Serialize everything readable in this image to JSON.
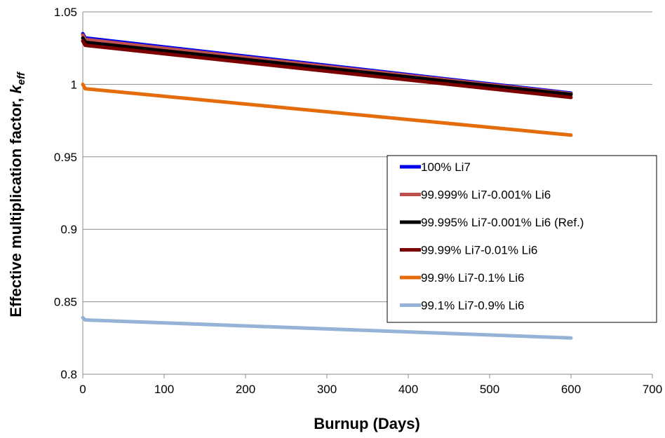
{
  "chart_data": {
    "type": "line",
    "xlabel": "Burnup (Days)",
    "ylabel": "Effective multiplication factor, ",
    "ylabel_symbol": "k",
    "ylabel_subscript": "eff",
    "xlim": [
      0,
      700
    ],
    "ylim": [
      0.8,
      1.05
    ],
    "xticks": [
      0,
      100,
      200,
      300,
      400,
      500,
      600,
      700
    ],
    "yticks": [
      0.8,
      0.85,
      0.9,
      0.95,
      1.0,
      1.05
    ],
    "xtick_labels": [
      "0",
      "100",
      "200",
      "300",
      "400",
      "500",
      "600",
      "700"
    ],
    "ytick_labels": [
      "0.8",
      "0.85",
      "0.9",
      "0.95",
      "1",
      "1.05"
    ],
    "grid": "horizontal",
    "legend_position": "center-right",
    "series": [
      {
        "name": "100% Li7",
        "color": "#0000ee",
        "x": [
          0,
          3,
          600
        ],
        "y": [
          1.035,
          1.032,
          0.994
        ]
      },
      {
        "name": "99.999% Li7-0.001% Li6",
        "color": "#c0504d",
        "x": [
          0,
          3,
          600
        ],
        "y": [
          1.034,
          1.031,
          0.9935
        ]
      },
      {
        "name": "99.995% Li7-0.001% Li6 (Ref.)",
        "color": "#000000",
        "x": [
          0,
          3,
          600
        ],
        "y": [
          1.032,
          1.029,
          0.993
        ]
      },
      {
        "name": "99.99% Li7-0.01% Li6",
        "color": "#7b0000",
        "x": [
          0,
          3,
          600
        ],
        "y": [
          1.03,
          1.027,
          0.991
        ]
      },
      {
        "name": "99.9% Li7-0.1% Li6",
        "color": "#e46c0a",
        "x": [
          0,
          3,
          600
        ],
        "y": [
          1.0,
          0.997,
          0.965
        ]
      },
      {
        "name": "99.1% Li7-0.9% Li6",
        "color": "#95b3d7",
        "x": [
          0,
          3,
          600
        ],
        "y": [
          0.839,
          0.8375,
          0.825
        ]
      }
    ]
  }
}
